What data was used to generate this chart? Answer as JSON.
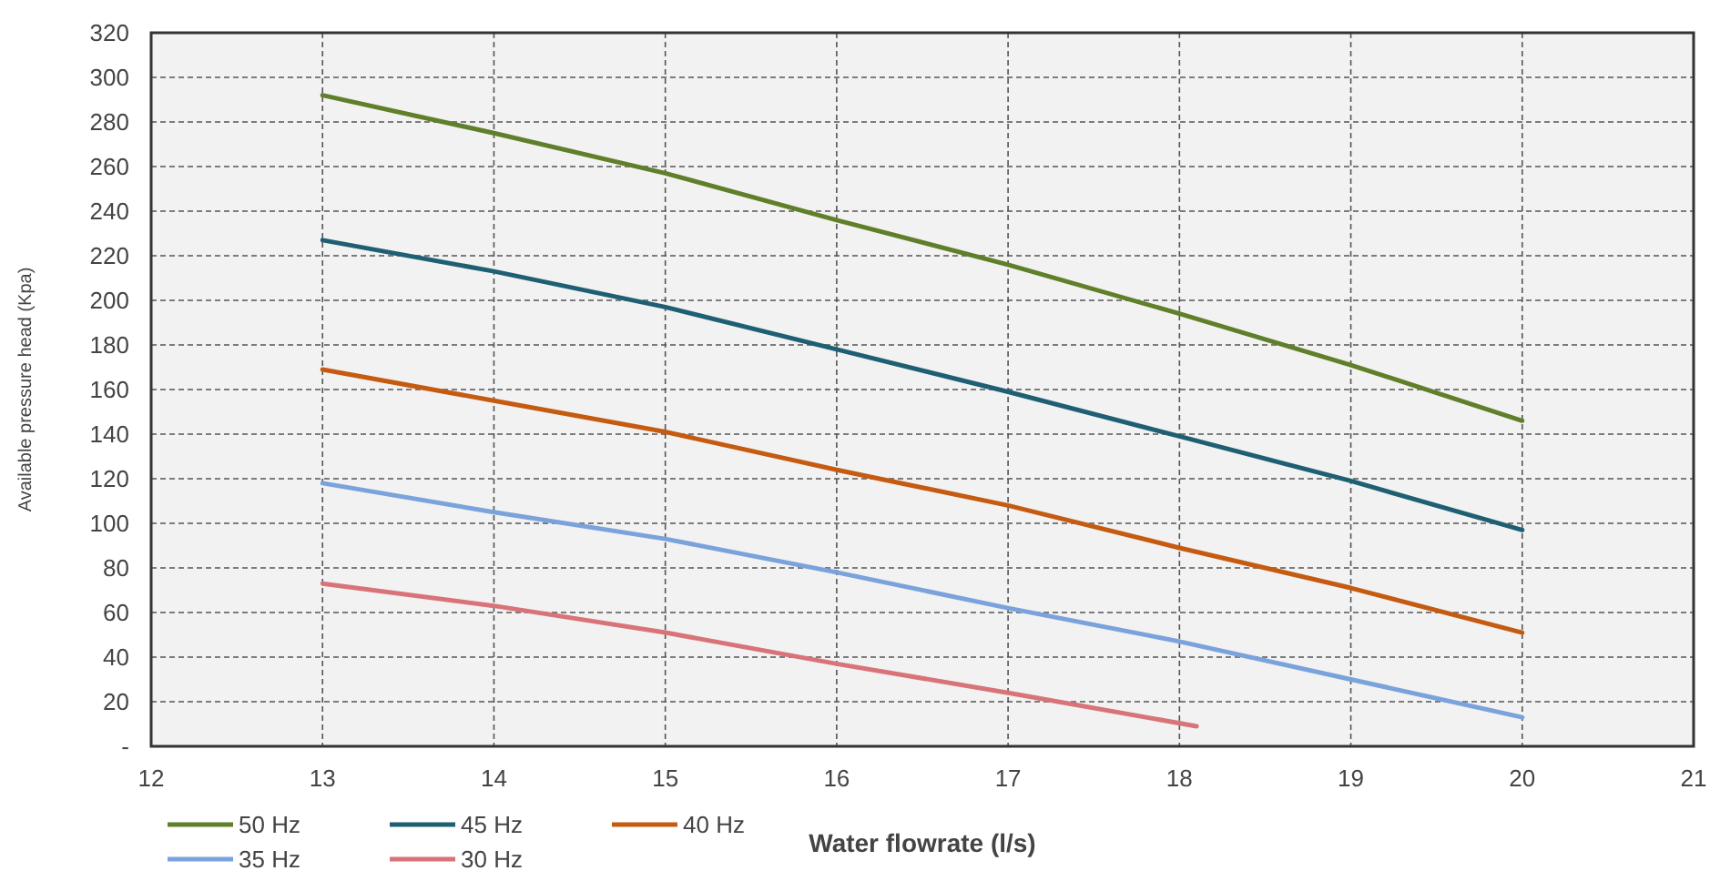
{
  "chart_data": {
    "type": "line",
    "xlabel": "Water flowrate (l/s)",
    "ylabel": "Available  pressure head (Kpa)",
    "xlim": [
      12,
      21
    ],
    "xticks": [
      12,
      13,
      14,
      15,
      16,
      17,
      18,
      19,
      20,
      21
    ],
    "ylim": [
      0,
      320
    ],
    "yticks": [
      {
        "value": 0,
        "label": "-"
      },
      20,
      40,
      60,
      80,
      100,
      120,
      140,
      160,
      180,
      200,
      220,
      240,
      260,
      280,
      300,
      320
    ],
    "grid": true,
    "legend": "bottom left",
    "marker": "none",
    "line_style": "solid",
    "series": [
      {
        "name": "50 Hz",
        "color": "#5f7f2a",
        "x": [
          13,
          14,
          15,
          16,
          17,
          18,
          19,
          20
        ],
        "values": [
          292,
          275,
          257,
          236,
          216,
          194,
          171,
          146
        ]
      },
      {
        "name": "45 Hz",
        "color": "#1f5f73",
        "x": [
          13,
          14,
          15,
          16,
          17,
          18,
          19,
          20
        ],
        "values": [
          227,
          213,
          197,
          178,
          159,
          139,
          119,
          97
        ]
      },
      {
        "name": "40 Hz",
        "color": "#c55a11",
        "x": [
          13,
          14,
          15,
          16,
          17,
          18,
          19,
          20
        ],
        "values": [
          169,
          155,
          141,
          124,
          108,
          89,
          71,
          51
        ]
      },
      {
        "name": "35 Hz",
        "color": "#7aa3db",
        "x": [
          13,
          14,
          15,
          16,
          17,
          18,
          19,
          20
        ],
        "values": [
          118,
          105,
          93,
          78,
          62,
          47,
          30,
          13
        ]
      },
      {
        "name": "30 Hz",
        "color": "#d9737a",
        "x": [
          13,
          14,
          15,
          16,
          17,
          18.1
        ],
        "values": [
          73,
          63,
          51,
          37,
          24,
          9
        ]
      }
    ]
  }
}
